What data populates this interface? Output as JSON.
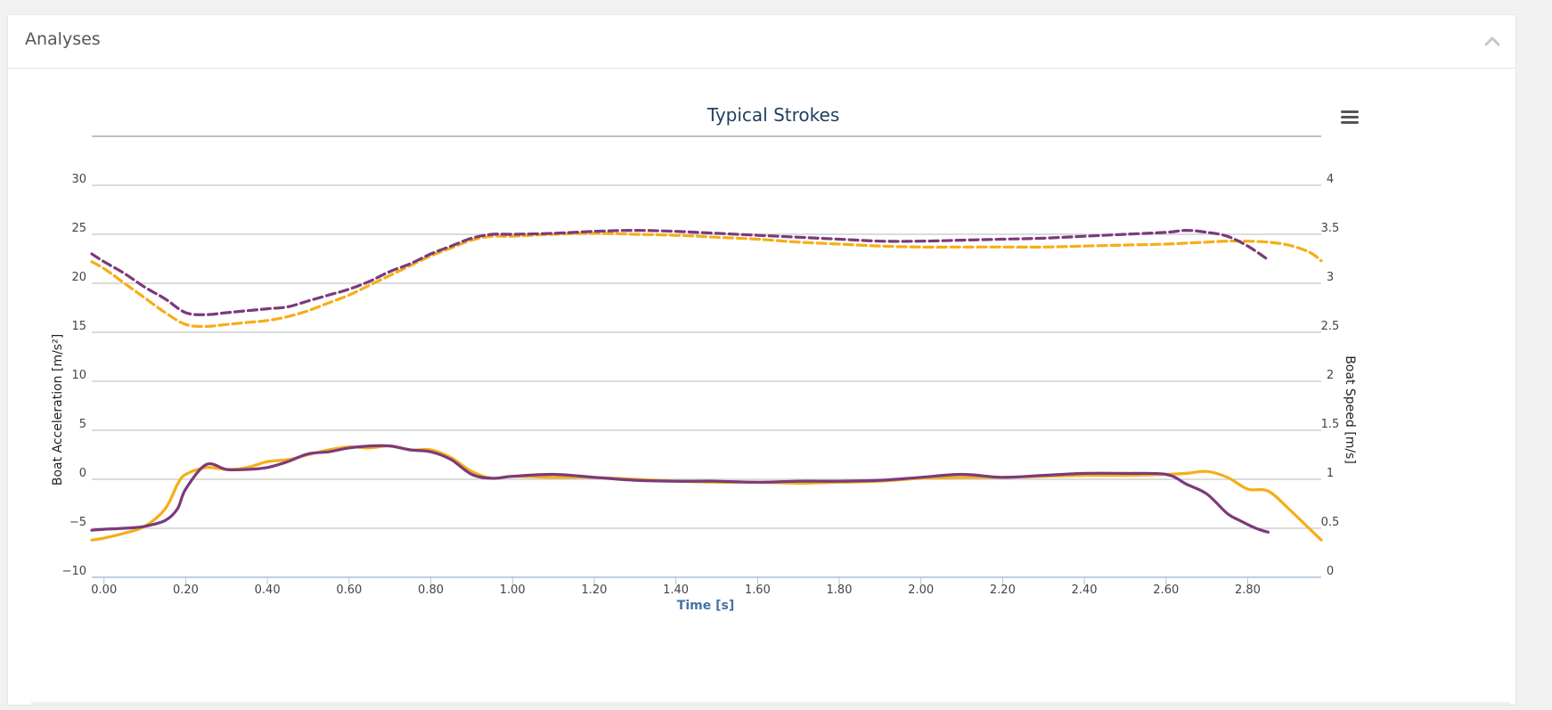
{
  "panel": {
    "title": "Analyses"
  },
  "icons": {
    "collapse": "chevron-up-icon",
    "menu": "hamburger-menu-icon"
  },
  "colors": {
    "series_orange": "#f5ae16",
    "series_purple": "#7b3a7b",
    "title": "#1f3f5f",
    "xaxis_title": "#4572a7",
    "grid": "#c8c8c8"
  },
  "chart_data": {
    "type": "line",
    "title": "Typical Strokes",
    "xlabel": "Time [s]",
    "ylabel_left": "Boat Acceleration [m/s²]",
    "ylabel_right": "Boat Speed [m/s]",
    "xlim": [
      -0.03,
      2.98
    ],
    "xticks": [
      "0.00",
      "0.20",
      "0.40",
      "0.60",
      "0.80",
      "1.00",
      "1.20",
      "1.40",
      "1.60",
      "1.80",
      "2.00",
      "2.20",
      "2.40",
      "2.60",
      "2.80"
    ],
    "xtick_values": [
      0,
      0.2,
      0.4,
      0.6,
      0.8,
      1.0,
      1.2,
      1.4,
      1.6,
      1.8,
      2.0,
      2.2,
      2.4,
      2.6,
      2.8
    ],
    "ylim_left": [
      -10,
      30
    ],
    "yticks_left": [
      "30",
      "25",
      "20",
      "15",
      "10",
      "5",
      "0",
      "−5",
      "−10"
    ],
    "ytick_values_left": [
      30,
      25,
      20,
      15,
      10,
      5,
      0,
      -5,
      -10
    ],
    "ylim_right": [
      0,
      4
    ],
    "yticks_right": [
      "4",
      "3.5",
      "3",
      "2.5",
      "2",
      "1.5",
      "1",
      "0.5",
      "0"
    ],
    "ytick_values_right": [
      4,
      3.5,
      3,
      2.5,
      2,
      1.5,
      1,
      0.5,
      0
    ],
    "grid": true,
    "legend": "none",
    "series": [
      {
        "axis": "right",
        "style": "dashed",
        "color": "#f5ae16",
        "x": [
          -0.03,
          0.0,
          0.05,
          0.1,
          0.15,
          0.2,
          0.25,
          0.3,
          0.35,
          0.4,
          0.45,
          0.5,
          0.55,
          0.6,
          0.65,
          0.7,
          0.75,
          0.8,
          0.85,
          0.9,
          0.95,
          1.0,
          1.1,
          1.2,
          1.3,
          1.4,
          1.5,
          1.6,
          1.7,
          1.8,
          1.9,
          2.0,
          2.1,
          2.2,
          2.3,
          2.4,
          2.5,
          2.6,
          2.65,
          2.7,
          2.75,
          2.8,
          2.85,
          2.9,
          2.95,
          2.98
        ],
        "y": [
          3.22,
          3.15,
          3.0,
          2.85,
          2.7,
          2.58,
          2.56,
          2.58,
          2.6,
          2.62,
          2.66,
          2.72,
          2.8,
          2.88,
          2.98,
          3.08,
          3.18,
          3.28,
          3.36,
          3.44,
          3.48,
          3.48,
          3.5,
          3.51,
          3.5,
          3.49,
          3.47,
          3.45,
          3.42,
          3.4,
          3.38,
          3.37,
          3.37,
          3.37,
          3.37,
          3.38,
          3.39,
          3.4,
          3.41,
          3.42,
          3.43,
          3.43,
          3.42,
          3.39,
          3.32,
          3.23
        ]
      },
      {
        "axis": "right",
        "style": "dashed",
        "color": "#7b3a7b",
        "x": [
          -0.03,
          0.0,
          0.05,
          0.1,
          0.15,
          0.2,
          0.25,
          0.3,
          0.35,
          0.4,
          0.45,
          0.5,
          0.55,
          0.6,
          0.65,
          0.7,
          0.75,
          0.8,
          0.85,
          0.9,
          0.95,
          1.0,
          1.1,
          1.2,
          1.3,
          1.4,
          1.5,
          1.6,
          1.7,
          1.8,
          1.9,
          2.0,
          2.1,
          2.2,
          2.3,
          2.4,
          2.5,
          2.6,
          2.65,
          2.7,
          2.75,
          2.8,
          2.85
        ],
        "y": [
          3.3,
          3.22,
          3.1,
          2.96,
          2.84,
          2.7,
          2.68,
          2.7,
          2.72,
          2.74,
          2.76,
          2.82,
          2.88,
          2.94,
          3.02,
          3.12,
          3.2,
          3.3,
          3.38,
          3.46,
          3.5,
          3.5,
          3.51,
          3.53,
          3.54,
          3.53,
          3.51,
          3.49,
          3.47,
          3.45,
          3.43,
          3.43,
          3.44,
          3.45,
          3.46,
          3.48,
          3.5,
          3.52,
          3.54,
          3.52,
          3.48,
          3.38,
          3.24
        ]
      },
      {
        "axis": "left",
        "style": "solid",
        "color": "#f5ae16",
        "x": [
          -0.03,
          0.0,
          0.05,
          0.1,
          0.15,
          0.18,
          0.2,
          0.25,
          0.3,
          0.35,
          0.4,
          0.45,
          0.5,
          0.55,
          0.6,
          0.65,
          0.7,
          0.75,
          0.8,
          0.85,
          0.9,
          0.95,
          1.0,
          1.1,
          1.2,
          1.3,
          1.4,
          1.5,
          1.6,
          1.7,
          1.8,
          1.9,
          2.0,
          2.1,
          2.2,
          2.3,
          2.4,
          2.5,
          2.6,
          2.65,
          2.7,
          2.75,
          2.8,
          2.85,
          2.9,
          2.95,
          2.98
        ],
        "y": [
          -6.2,
          -6.0,
          -5.5,
          -4.8,
          -3.0,
          -0.5,
          0.5,
          1.2,
          1.0,
          1.2,
          1.8,
          2.0,
          2.5,
          3.0,
          3.3,
          3.2,
          3.4,
          3.0,
          3.0,
          2.2,
          0.8,
          0.1,
          0.3,
          0.2,
          0.2,
          0.0,
          -0.2,
          -0.3,
          -0.3,
          -0.4,
          -0.3,
          -0.2,
          0.1,
          0.2,
          0.2,
          0.3,
          0.4,
          0.4,
          0.5,
          0.6,
          0.8,
          0.2,
          -1.0,
          -1.2,
          -3.0,
          -5.0,
          -6.2
        ]
      },
      {
        "axis": "left",
        "style": "solid",
        "color": "#7b3a7b",
        "x": [
          -0.03,
          0.0,
          0.05,
          0.1,
          0.15,
          0.18,
          0.2,
          0.25,
          0.3,
          0.35,
          0.4,
          0.45,
          0.5,
          0.55,
          0.6,
          0.65,
          0.7,
          0.75,
          0.8,
          0.85,
          0.9,
          0.95,
          1.0,
          1.1,
          1.2,
          1.3,
          1.4,
          1.5,
          1.6,
          1.7,
          1.8,
          1.9,
          2.0,
          2.1,
          2.2,
          2.3,
          2.4,
          2.5,
          2.6,
          2.65,
          2.7,
          2.75,
          2.78,
          2.82,
          2.85
        ],
        "y": [
          -5.2,
          -5.1,
          -5.0,
          -4.8,
          -4.2,
          -3.0,
          -1.0,
          1.5,
          1.0,
          1.0,
          1.2,
          1.8,
          2.6,
          2.8,
          3.2,
          3.4,
          3.4,
          3.0,
          2.8,
          2.0,
          0.5,
          0.1,
          0.3,
          0.5,
          0.2,
          -0.1,
          -0.2,
          -0.2,
          -0.3,
          -0.2,
          -0.2,
          -0.1,
          0.2,
          0.5,
          0.2,
          0.4,
          0.6,
          0.6,
          0.5,
          -0.5,
          -1.5,
          -3.5,
          -4.2,
          -5.0,
          -5.4
        ]
      }
    ]
  }
}
